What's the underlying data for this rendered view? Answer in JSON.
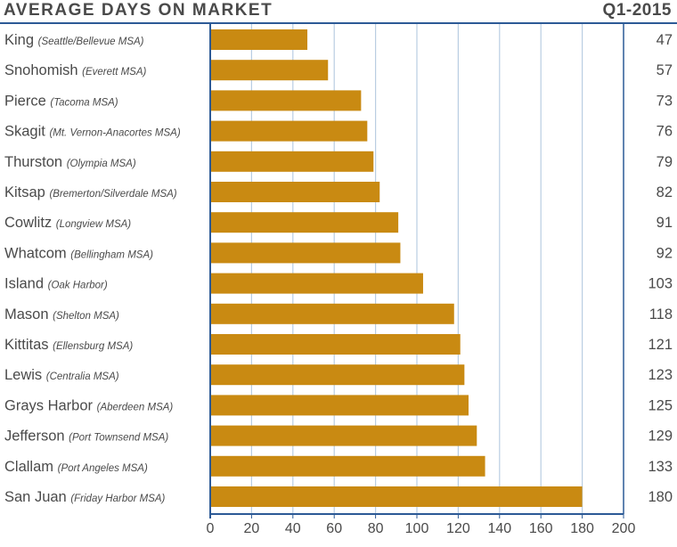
{
  "header": {
    "title": "AVERAGE DAYS ON MARKET",
    "period": "Q1-2015"
  },
  "colors": {
    "bar": "#c98a12",
    "axis": "#2c5a96",
    "grid": "#b9cde2",
    "text": "#4a4a4a"
  },
  "chart_data": {
    "type": "bar",
    "orientation": "horizontal",
    "title": "AVERAGE DAYS ON MARKET",
    "subtitle": "Q1-2015",
    "categories": [
      "King",
      "Snohomish",
      "Pierce",
      "Skagit",
      "Thurston",
      "Kitsap",
      "Cowlitz",
      "Whatcom",
      "Island",
      "Mason",
      "Kittitas",
      "Lewis",
      "Grays Harbor",
      "Jefferson",
      "Clallam",
      "San Juan"
    ],
    "category_notes": [
      "(Seattle/Bellevue MSA)",
      "(Everett MSA)",
      "(Tacoma MSA)",
      "(Mt. Vernon-Anacortes MSA)",
      "(Olympia MSA)",
      "(Bremerton/Silverdale MSA)",
      "(Longview MSA)",
      "(Bellingham MSA)",
      "(Oak Harbor)",
      "(Shelton MSA)",
      "(Ellensburg MSA)",
      "(Centralia MSA)",
      "(Aberdeen MSA)",
      "(Port Townsend MSA)",
      "(Port Angeles MSA)",
      "(Friday Harbor MSA)"
    ],
    "values": [
      47,
      57,
      73,
      76,
      79,
      82,
      91,
      92,
      103,
      118,
      121,
      123,
      125,
      129,
      133,
      180
    ],
    "xlim": [
      0,
      200
    ],
    "xticks": [
      "0",
      "20",
      "40",
      "60",
      "80",
      "100",
      "120",
      "140",
      "160",
      "180",
      "200"
    ],
    "xlabel": "",
    "ylabel": "",
    "grid": true
  }
}
